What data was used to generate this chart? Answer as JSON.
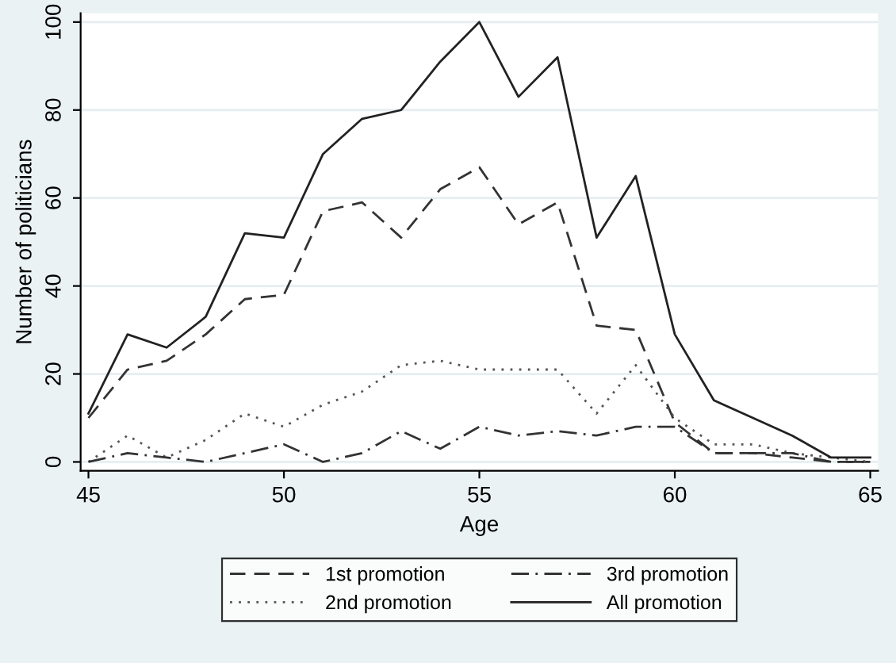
{
  "chart_data": {
    "type": "line",
    "xlabel": "Age",
    "ylabel": "Number of politicians",
    "x": [
      45,
      46,
      47,
      48,
      49,
      50,
      51,
      52,
      53,
      54,
      55,
      56,
      57,
      58,
      59,
      60,
      61,
      62,
      63,
      64,
      65
    ],
    "xlim": [
      44.8,
      65.2
    ],
    "xticks": [
      45,
      50,
      55,
      60,
      65
    ],
    "ylim": [
      -2,
      102
    ],
    "yticks": [
      0,
      20,
      40,
      60,
      80,
      100
    ],
    "grid": "y",
    "legend": "bottom",
    "series": [
      {
        "name": "1st promotion",
        "color": "#333333",
        "line_style": "dashed",
        "values": [
          10,
          21,
          23,
          29,
          37,
          38,
          57,
          59,
          51,
          62,
          67,
          54,
          59,
          31,
          30,
          9,
          2,
          2,
          1,
          0,
          0
        ]
      },
      {
        "name": "2nd promotion",
        "color": "#555555",
        "line_style": "dotted",
        "values": [
          0,
          6,
          1,
          5,
          11,
          8,
          13,
          16,
          22,
          23,
          21,
          21,
          21,
          11,
          22,
          10,
          4,
          4,
          2,
          1,
          0
        ]
      },
      {
        "name": "3rd promotion",
        "color": "#333333",
        "line_style": "dashdot",
        "values": [
          0,
          2,
          1,
          0,
          2,
          4,
          0,
          2,
          7,
          3,
          8,
          6,
          7,
          6,
          8,
          8,
          2,
          2,
          2,
          0,
          0
        ]
      },
      {
        "name": "All promotion",
        "color": "#222222",
        "line_style": "solid",
        "values": [
          11,
          29,
          26,
          33,
          52,
          51,
          70,
          78,
          80,
          91,
          100,
          83,
          92,
          51,
          65,
          29,
          14,
          10,
          6,
          1,
          1
        ]
      }
    ]
  }
}
